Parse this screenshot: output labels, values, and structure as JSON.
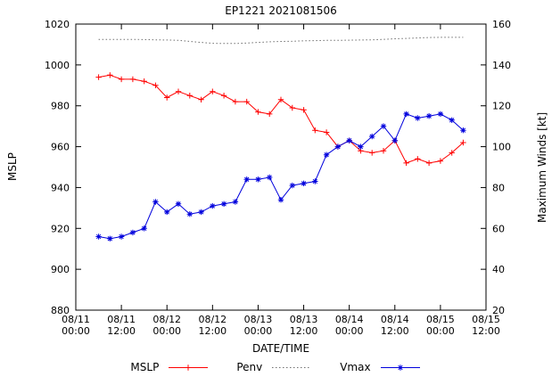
{
  "title": "EP1221 2021081506",
  "axes": {
    "x_label": "DATE/TIME",
    "y_left_label": "MSLP",
    "y_right_label": "Maximum Winds [kt]"
  },
  "chart_data": {
    "type": "line",
    "title": "EP1221 2021081506",
    "xlabel": "DATE/TIME",
    "ylabel_left": "MSLP",
    "ylabel_right": "Maximum Winds [kt]",
    "x_unit": "hours since 2021-08-11 00:00",
    "x_range_hours": [
      0,
      108
    ],
    "x_tick_hours": [
      0,
      12,
      24,
      36,
      48,
      60,
      72,
      84,
      96,
      108
    ],
    "x_tick_labels": [
      [
        "08/11",
        "00:00"
      ],
      [
        "08/11",
        "12:00"
      ],
      [
        "08/12",
        "00:00"
      ],
      [
        "08/12",
        "12:00"
      ],
      [
        "08/13",
        "00:00"
      ],
      [
        "08/13",
        "12:00"
      ],
      [
        "08/14",
        "00:00"
      ],
      [
        "08/14",
        "12:00"
      ],
      [
        "08/15",
        "00:00"
      ],
      [
        "08/15",
        "12:00"
      ]
    ],
    "y_left_range": [
      880,
      1020
    ],
    "y_left_ticks": [
      880,
      900,
      920,
      940,
      960,
      980,
      1000,
      1020
    ],
    "y_right_range": [
      20,
      160
    ],
    "y_right_ticks": [
      20,
      40,
      60,
      80,
      100,
      120,
      140,
      160
    ],
    "grid": false,
    "legend_position": "bottom-center",
    "x_hours": [
      6,
      9,
      12,
      15,
      18,
      21,
      24,
      27,
      30,
      33,
      36,
      39,
      42,
      45,
      48,
      51,
      54,
      57,
      60,
      63,
      66,
      69,
      72,
      75,
      78,
      81,
      84,
      87,
      90,
      93,
      96,
      99,
      102
    ],
    "series": [
      {
        "name": "MSLP",
        "axis": "left",
        "color": "#ff0000",
        "style": "solid",
        "marker": "plus",
        "values": [
          994,
          995,
          993,
          993,
          992,
          990,
          984,
          987,
          985,
          983,
          987,
          985,
          982,
          982,
          977,
          976,
          983,
          979,
          978,
          968,
          967,
          960,
          963,
          958,
          957,
          958,
          963,
          952,
          954,
          952,
          953,
          957,
          962
        ]
      },
      {
        "name": "Penv",
        "axis": "left",
        "color": "#707070",
        "style": "dotted",
        "marker": "none",
        "values": [
          1012.5,
          1012.5,
          1012.5,
          1012.5,
          1012.4,
          1012.3,
          1012.2,
          1012.0,
          1011.5,
          1011.0,
          1010.6,
          1010.5,
          1010.5,
          1010.7,
          1011.0,
          1011.3,
          1011.5,
          1011.6,
          1011.8,
          1011.9,
          1012.0,
          1012.0,
          1012.1,
          1012.2,
          1012.3,
          1012.5,
          1012.8,
          1013.0,
          1013.2,
          1013.4,
          1013.5,
          1013.5,
          1013.5
        ]
      },
      {
        "name": "Vmax",
        "axis": "right",
        "color": "#0000dd",
        "style": "solid",
        "marker": "asterisk",
        "values": [
          56,
          55,
          56,
          58,
          60,
          73,
          68,
          72,
          67,
          68,
          71,
          72,
          73,
          84,
          84,
          85,
          74,
          81,
          82,
          83,
          96,
          100,
          103,
          100,
          105,
          110,
          103,
          116,
          114,
          115,
          116,
          113,
          108
        ]
      }
    ]
  }
}
